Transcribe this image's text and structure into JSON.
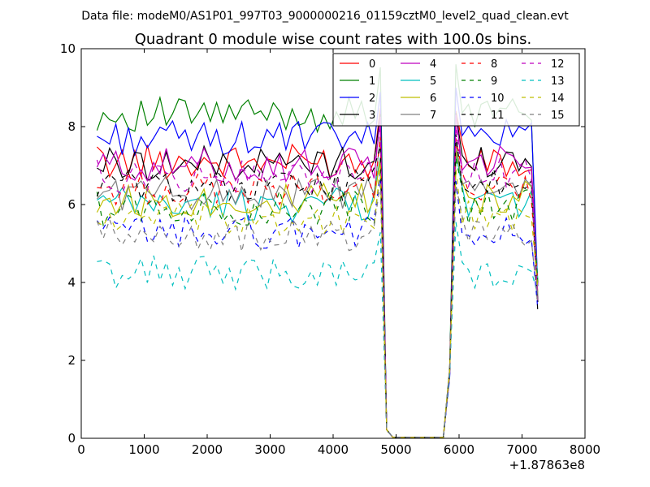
{
  "suptitle": "Data file: modeM0/AS1P01_997T03_9000000216_01159cztM0_level2_quad_clean.evt",
  "chart_data": {
    "type": "line",
    "title": "Quadrant 0 module wise count rates with 100.0s bins.",
    "xlabel": "",
    "ylabel": "",
    "x_offset_label": "+1.87863e8",
    "xlim": [
      0,
      8000
    ],
    "ylim": [
      0,
      10
    ],
    "xticks": [
      0,
      1000,
      2000,
      3000,
      4000,
      5000,
      6000,
      7000,
      8000
    ],
    "yticks": [
      0,
      2,
      4,
      6,
      8,
      10
    ],
    "grid": false,
    "legend_position": "top-right",
    "legend_columns": 4,
    "x": [
      250,
      350,
      450,
      550,
      650,
      750,
      850,
      950,
      1050,
      1150,
      1250,
      1350,
      1450,
      1550,
      1650,
      1750,
      1850,
      1950,
      2050,
      2150,
      2250,
      2350,
      2450,
      2550,
      2650,
      2750,
      2850,
      2950,
      3050,
      3150,
      3250,
      3350,
      3450,
      3550,
      3650,
      3750,
      3850,
      3950,
      4050,
      4150,
      4250,
      4350,
      4450,
      4550,
      4650,
      4750,
      4850,
      4950,
      5050,
      5150,
      5250,
      5350,
      5450,
      5550,
      5650,
      5750,
      5850,
      5950,
      6050,
      6150,
      6250,
      6350,
      6450,
      6550,
      6650,
      6750,
      6850,
      6950,
      7050,
      7150,
      7250
    ],
    "series": [
      {
        "name": "0",
        "color": "#ff0000",
        "dash": "solid",
        "level": 7.1
      },
      {
        "name": "1",
        "color": "#008000",
        "dash": "solid",
        "level": 8.3
      },
      {
        "name": "2",
        "color": "#0000ff",
        "dash": "solid",
        "level": 7.7
      },
      {
        "name": "3",
        "color": "#000000",
        "dash": "solid",
        "level": 7.05
      },
      {
        "name": "4",
        "color": "#bf00bf",
        "dash": "solid",
        "level": 7.0
      },
      {
        "name": "5",
        "color": "#00bfbf",
        "dash": "solid",
        "level": 6.0
      },
      {
        "name": "6",
        "color": "#bfbf00",
        "dash": "solid",
        "level": 6.1
      },
      {
        "name": "7",
        "color": "#808080",
        "dash": "solid",
        "level": 6.3
      },
      {
        "name": "8",
        "color": "#ff0000",
        "dash": "dashed",
        "level": 6.4
      },
      {
        "name": "9",
        "color": "#008000",
        "dash": "dashed",
        "level": 5.9
      },
      {
        "name": "10",
        "color": "#0000ff",
        "dash": "dashed",
        "level": 5.3
      },
      {
        "name": "11",
        "color": "#000000",
        "dash": "dashed",
        "level": 6.5
      },
      {
        "name": "12",
        "color": "#bf00bf",
        "dash": "dashed",
        "level": 6.7
      },
      {
        "name": "13",
        "color": "#00bfbf",
        "dash": "dashed",
        "level": 4.25
      },
      {
        "name": "14",
        "color": "#bfbf00",
        "dash": "dashed",
        "level": 5.6
      },
      {
        "name": "15",
        "color": "#808080",
        "dash": "dashed",
        "level": 5.2
      }
    ]
  }
}
